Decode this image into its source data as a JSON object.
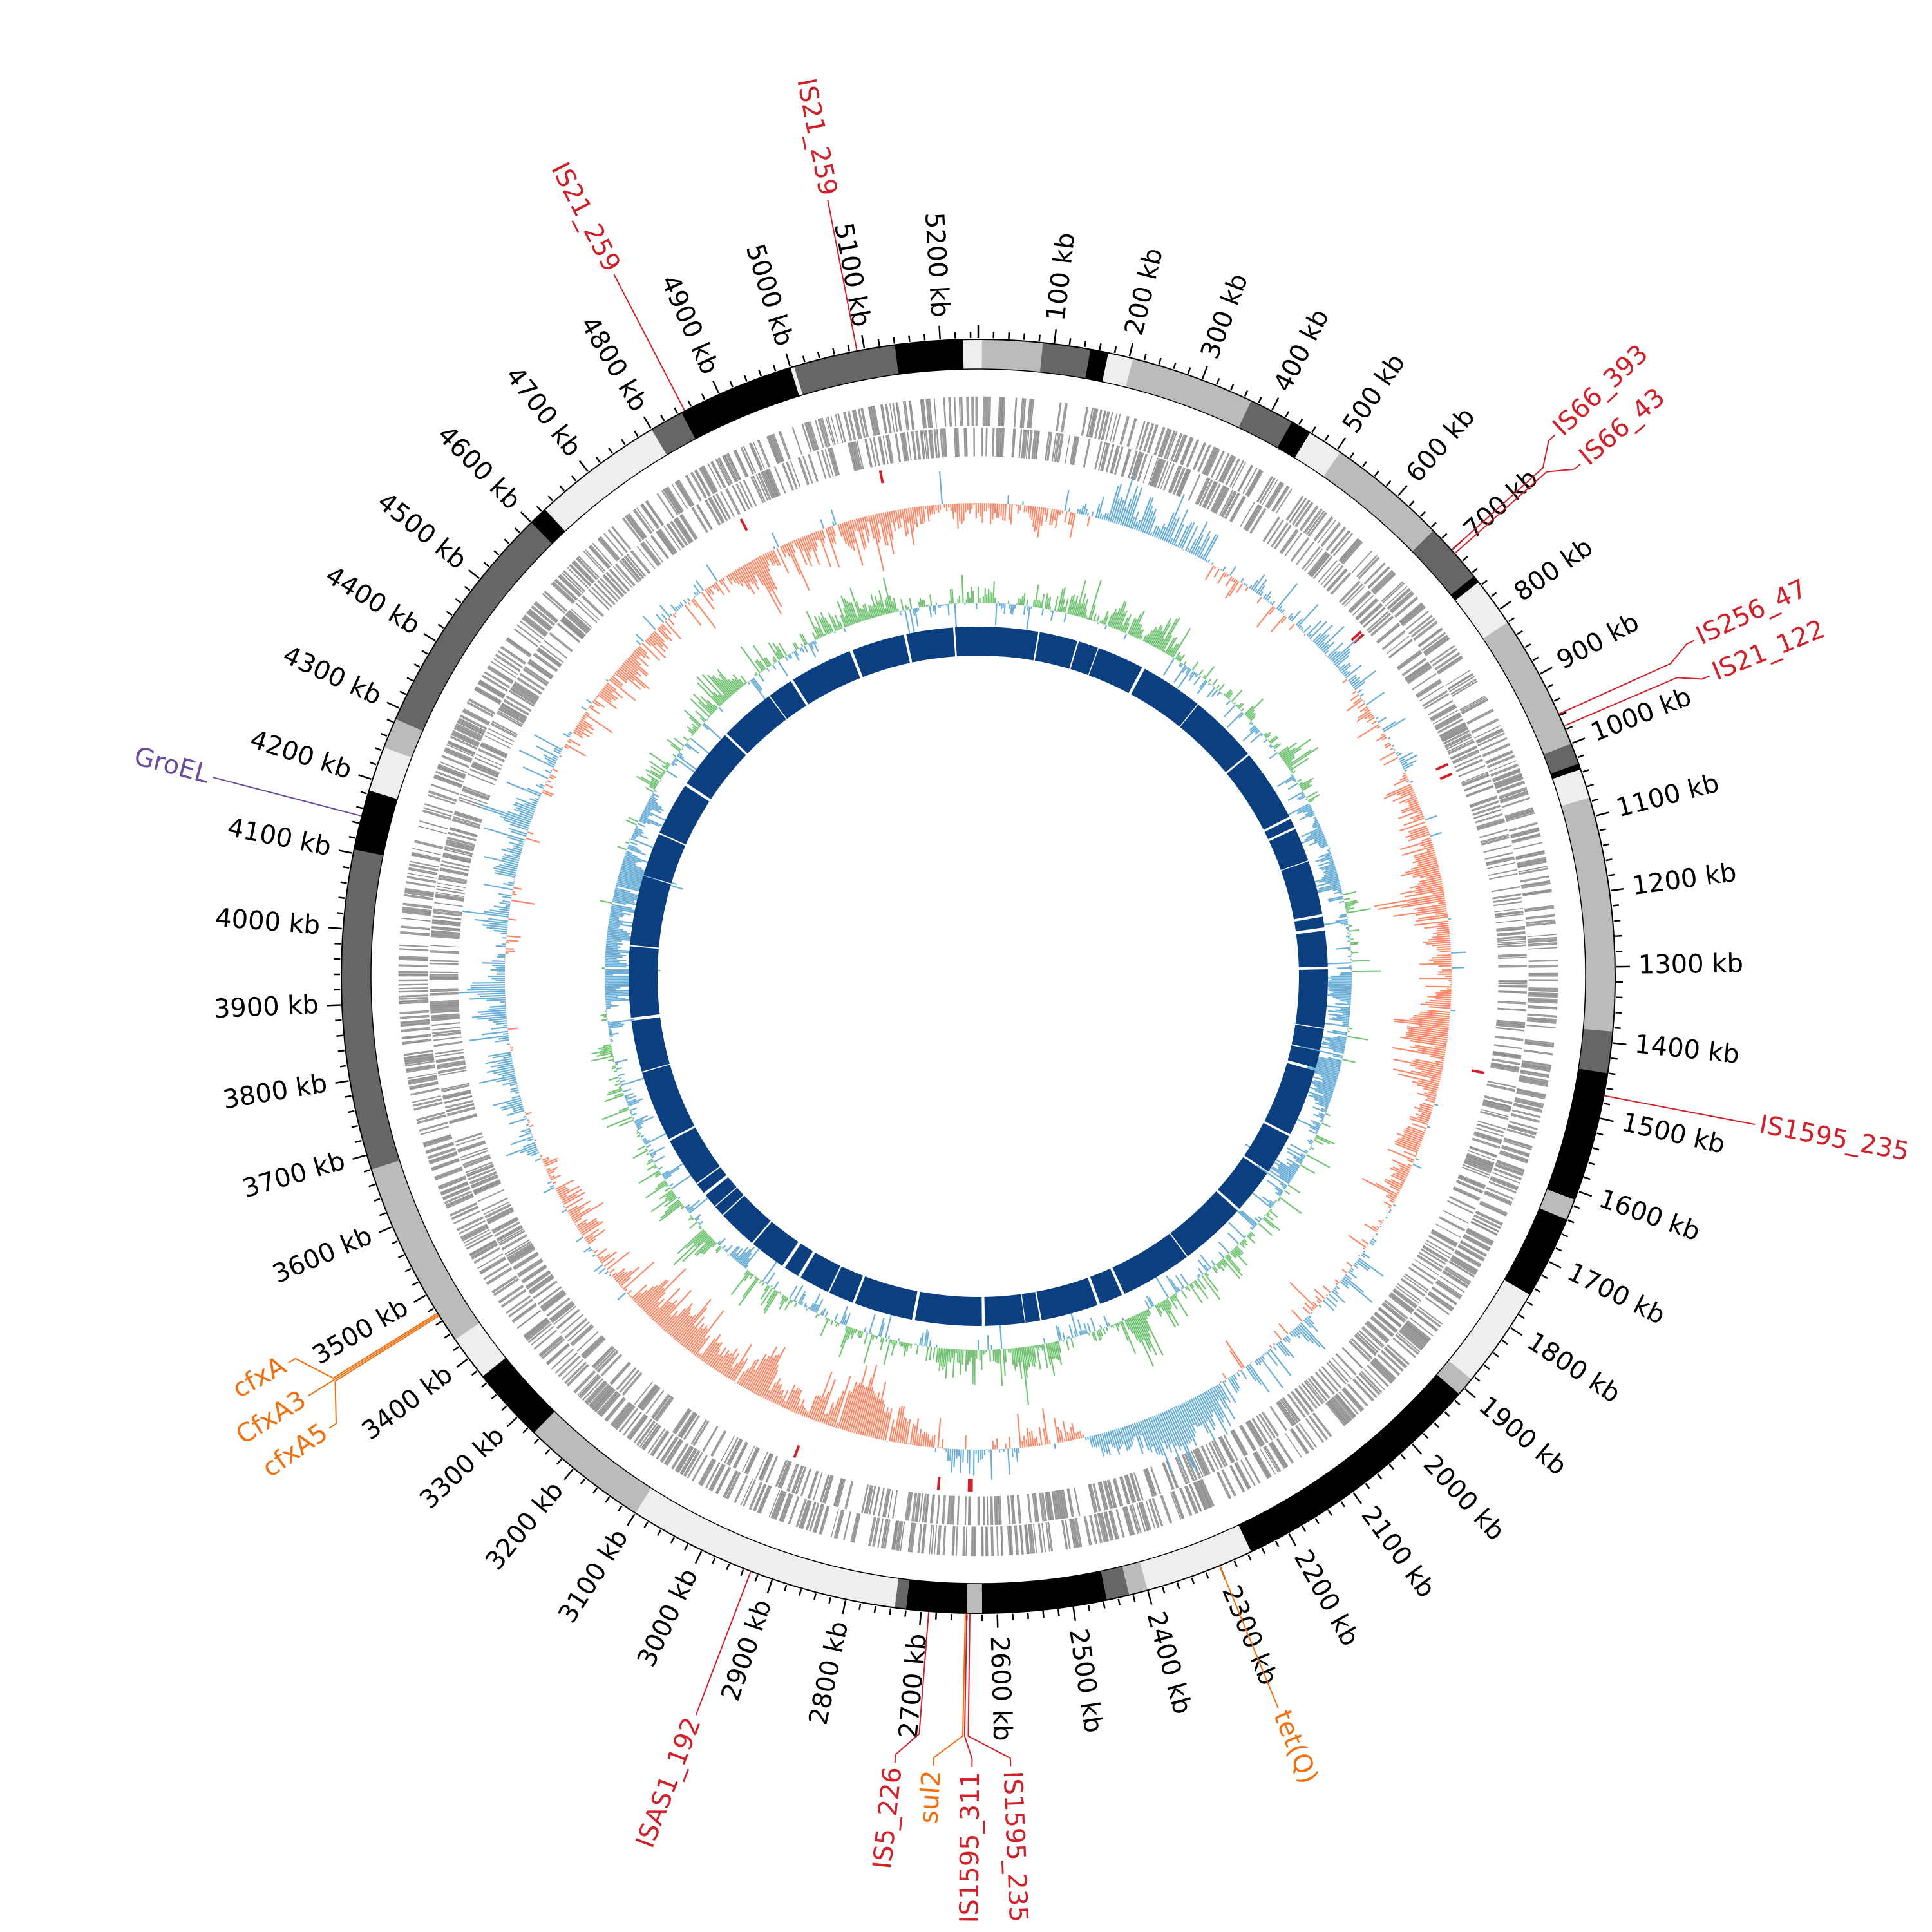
{
  "genome": {
    "length_kb": 5250,
    "tick_unit": "kb",
    "major_tick_step_kb": 100,
    "minor_tick_step_kb": 20,
    "tick_labels": [
      "100 kb",
      "200 kb",
      "300 kb",
      "400 kb",
      "500 kb",
      "600 kb",
      "700 kb",
      "800 kb",
      "900 kb",
      "1000 kb",
      "1100 kb",
      "1200 kb",
      "1300 kb",
      "1400 kb",
      "1500 kb",
      "1600 kb",
      "1700 kb",
      "1800 kb",
      "1900 kb",
      "2000 kb",
      "2100 kb",
      "2200 kb",
      "2300 kb",
      "2400 kb",
      "2500 kb",
      "2600 kb",
      "2700 kb",
      "2800 kb",
      "2900 kb",
      "3000 kb",
      "3100 kb",
      "3200 kb",
      "3300 kb",
      "3400 kb",
      "3500 kb",
      "3600 kb",
      "3700 kb",
      "3800 kb",
      "3900 kb",
      "4000 kb",
      "4100 kb",
      "4200 kb",
      "4300 kb",
      "4400 kb",
      "4500 kb",
      "4600 kb",
      "4700 kb",
      "4800 kb",
      "4900 kb",
      "5000 kb",
      "5100 kb",
      "5200 kb"
    ]
  },
  "colors": {
    "contig_light": "#eeeeee",
    "contig_mid": "#bbbbbb",
    "contig_dark": "#666666",
    "contig_black": "#000000",
    "gene": "#a0a0a0",
    "is_element": "#d0202a",
    "resistance_gene": "#f07010",
    "groel": "#6a4c9c",
    "gc_skew_pos": "#6baed6",
    "gc_skew_neg": "#fb8a6a",
    "gc_content_pos": "#74c476",
    "gc_content_neg": "#6baed6",
    "inner_ring": "#0b3f80"
  },
  "contigs": [
    {
      "start": 0,
      "end": 5,
      "shade": "contig_light"
    },
    {
      "start": 5,
      "end": 85,
      "shade": "contig_mid"
    },
    {
      "start": 85,
      "end": 148,
      "shade": "contig_dark"
    },
    {
      "start": 148,
      "end": 172,
      "shade": "contig_black"
    },
    {
      "start": 172,
      "end": 205,
      "shade": "contig_light"
    },
    {
      "start": 205,
      "end": 370,
      "shade": "contig_mid"
    },
    {
      "start": 370,
      "end": 430,
      "shade": "contig_dark"
    },
    {
      "start": 430,
      "end": 458,
      "shade": "contig_black"
    },
    {
      "start": 458,
      "end": 505,
      "shade": "contig_light"
    },
    {
      "start": 505,
      "end": 665,
      "shade": "contig_mid"
    },
    {
      "start": 665,
      "end": 745,
      "shade": "contig_dark"
    },
    {
      "start": 745,
      "end": 755,
      "shade": "contig_black"
    },
    {
      "start": 755,
      "end": 820,
      "shade": "contig_light"
    },
    {
      "start": 820,
      "end": 1000,
      "shade": "contig_mid"
    },
    {
      "start": 1000,
      "end": 1028,
      "shade": "contig_dark"
    },
    {
      "start": 1028,
      "end": 1036,
      "shade": "contig_black"
    },
    {
      "start": 1036,
      "end": 1075,
      "shade": "contig_light"
    },
    {
      "start": 1075,
      "end": 1385,
      "shade": "contig_mid"
    },
    {
      "start": 1385,
      "end": 1440,
      "shade": "contig_dark"
    },
    {
      "start": 1440,
      "end": 1612,
      "shade": "contig_black"
    },
    {
      "start": 1612,
      "end": 1640,
      "shade": "contig_mid"
    },
    {
      "start": 1640,
      "end": 1750,
      "shade": "contig_black"
    },
    {
      "start": 1750,
      "end": 1885,
      "shade": "contig_light"
    },
    {
      "start": 1885,
      "end": 1910,
      "shade": "contig_mid"
    },
    {
      "start": 1910,
      "end": 2255,
      "shade": "contig_black"
    },
    {
      "start": 2255,
      "end": 2400,
      "shade": "contig_light"
    },
    {
      "start": 2400,
      "end": 2425,
      "shade": "contig_mid"
    },
    {
      "start": 2425,
      "end": 2455,
      "shade": "contig_dark"
    },
    {
      "start": 2455,
      "end": 2620,
      "shade": "contig_black"
    },
    {
      "start": 2620,
      "end": 2640,
      "shade": "contig_mid"
    },
    {
      "start": 2640,
      "end": 2720,
      "shade": "contig_black"
    },
    {
      "start": 2720,
      "end": 2735,
      "shade": "contig_dark"
    },
    {
      "start": 2735,
      "end": 3100,
      "shade": "contig_light"
    },
    {
      "start": 3100,
      "end": 3270,
      "shade": "contig_mid"
    },
    {
      "start": 3270,
      "end": 3370,
      "shade": "contig_black"
    },
    {
      "start": 3370,
      "end": 3430,
      "shade": "contig_light"
    },
    {
      "start": 3430,
      "end": 3680,
      "shade": "contig_mid"
    },
    {
      "start": 3680,
      "end": 4105,
      "shade": "contig_dark"
    },
    {
      "start": 4105,
      "end": 4185,
      "shade": "contig_black"
    },
    {
      "start": 4185,
      "end": 4245,
      "shade": "contig_light"
    },
    {
      "start": 4245,
      "end": 4285,
      "shade": "contig_mid"
    },
    {
      "start": 4285,
      "end": 4600,
      "shade": "contig_dark"
    },
    {
      "start": 4600,
      "end": 4625,
      "shade": "contig_black"
    },
    {
      "start": 4625,
      "end": 4800,
      "shade": "contig_light"
    },
    {
      "start": 4800,
      "end": 4845,
      "shade": "contig_dark"
    },
    {
      "start": 4845,
      "end": 5000,
      "shade": "contig_black"
    },
    {
      "start": 5000,
      "end": 5005,
      "shade": "contig_light"
    },
    {
      "start": 5005,
      "end": 5140,
      "shade": "contig_dark"
    },
    {
      "start": 5140,
      "end": 5230,
      "shade": "contig_black"
    },
    {
      "start": 5230,
      "end": 5250,
      "shade": "contig_light"
    }
  ],
  "annotations": [
    {
      "label": "IS66_393",
      "kb": 700,
      "type": "is_element"
    },
    {
      "label": "IS66_43",
      "kb": 706,
      "type": "is_element"
    },
    {
      "label": "IS256_47",
      "kb": 958,
      "type": "is_element"
    },
    {
      "label": "IS21_122",
      "kb": 975,
      "type": "is_element"
    },
    {
      "label": "IS1595_235",
      "kb": 1470,
      "type": "is_element"
    },
    {
      "label": "tet(Q)",
      "kb": 2300,
      "type": "resistance_gene"
    },
    {
      "label": "IS1595_235",
      "kb": 2636,
      "type": "is_element"
    },
    {
      "label": "IS1595_311",
      "kb": 2640,
      "type": "is_element"
    },
    {
      "label": "sul2",
      "kb": 2642,
      "type": "resistance_gene"
    },
    {
      "label": "IS5_226",
      "kb": 2690,
      "type": "is_element"
    },
    {
      "label": "ISAS1_192",
      "kb": 2930,
      "type": "is_element"
    },
    {
      "label": "cfxA5",
      "kb": 3468,
      "type": "resistance_gene"
    },
    {
      "label": "CfxA3",
      "kb": 3470,
      "type": "resistance_gene"
    },
    {
      "label": "cfxA",
      "kb": 3472,
      "type": "resistance_gene"
    },
    {
      "label": "GroEL",
      "kb": 4150,
      "type": "groel"
    },
    {
      "label": "IS21_259",
      "kb": 4850,
      "type": "is_element"
    },
    {
      "label": "IS21_259",
      "kb": 5090,
      "type": "is_element"
    }
  ]
}
